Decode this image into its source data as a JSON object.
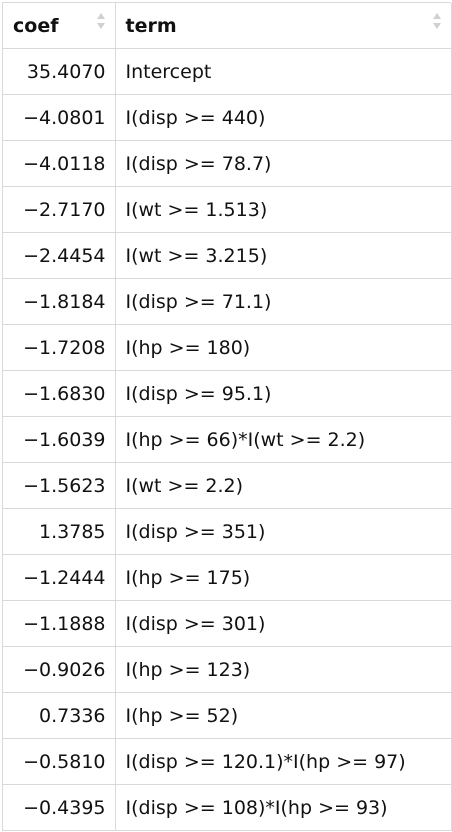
{
  "table": {
    "columns": [
      {
        "label": "coef",
        "icon": "sort-icon"
      },
      {
        "label": "term",
        "icon": "sort-icon"
      }
    ],
    "rows": [
      {
        "coef": "35.4070",
        "term": "Intercept"
      },
      {
        "coef": "−4.0801",
        "term": "I(disp >= 440)"
      },
      {
        "coef": "−4.0118",
        "term": "I(disp >= 78.7)"
      },
      {
        "coef": "−2.7170",
        "term": "I(wt >= 1.513)"
      },
      {
        "coef": "−2.4454",
        "term": "I(wt >= 3.215)"
      },
      {
        "coef": "−1.8184",
        "term": "I(disp >= 71.1)"
      },
      {
        "coef": "−1.7208",
        "term": "I(hp >= 180)"
      },
      {
        "coef": "−1.6830",
        "term": "I(disp >= 95.1)"
      },
      {
        "coef": "−1.6039",
        "term": "I(hp >= 66)*I(wt >= 2.2)"
      },
      {
        "coef": "−1.5623",
        "term": "I(wt >= 2.2)"
      },
      {
        "coef": "1.3785",
        "term": "I(disp >= 351)"
      },
      {
        "coef": "−1.2444",
        "term": "I(hp >= 175)"
      },
      {
        "coef": "−1.1888",
        "term": "I(disp >= 301)"
      },
      {
        "coef": "−0.9026",
        "term": "I(hp >= 123)"
      },
      {
        "coef": "0.7336",
        "term": "I(hp >= 52)"
      },
      {
        "coef": "−0.5810",
        "term": "I(disp >= 120.1)*I(hp >= 97)"
      },
      {
        "coef": "−0.4395",
        "term": "I(disp >= 108)*I(hp >= 93)"
      }
    ]
  }
}
